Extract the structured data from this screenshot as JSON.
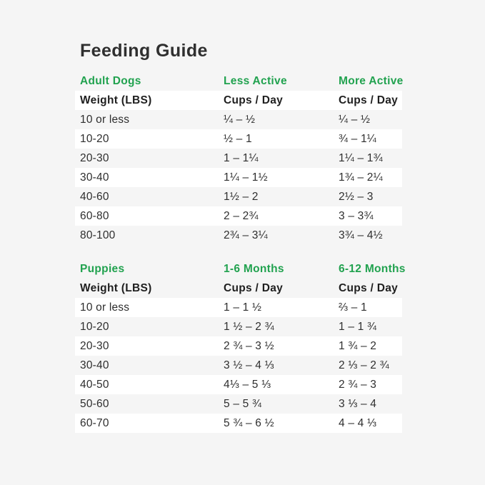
{
  "page": {
    "title": "Feeding Guide"
  },
  "colors": {
    "accent_green": "#21a24f",
    "page_background": "#f5f5f5",
    "row_highlight": "#ffffff",
    "text_dark": "#2e2e2e"
  },
  "tables": [
    {
      "name": "adult-dogs",
      "section_headers": [
        "Adult Dogs",
        "Less Active",
        "More Active"
      ],
      "column_headers": [
        "Weight (LBS)",
        "Cups / Day",
        "Cups / Day"
      ],
      "rows": [
        [
          "10 or less",
          "¼ – ½",
          "¼ – ½"
        ],
        [
          "10-20",
          "½ – 1",
          "¾ – 1¼"
        ],
        [
          "20-30",
          "1 – 1¼",
          "1¼ – 1¾"
        ],
        [
          "30-40",
          "1¼ – 1½",
          "1¾ – 2¼"
        ],
        [
          "40-60",
          "1½ – 2",
          "2½ – 3"
        ],
        [
          "60-80",
          "2 – 2¾",
          "3 – 3¾"
        ],
        [
          "80-100",
          "2¾ – 3¼",
          "3¾ – 4½"
        ]
      ]
    },
    {
      "name": "puppies",
      "section_headers": [
        "Puppies",
        "1-6 Months",
        "6-12 Months"
      ],
      "column_headers": [
        "Weight (LBS)",
        "Cups / Day",
        "Cups / Day"
      ],
      "rows": [
        [
          "10 or less",
          "1 – 1 ½",
          "⅔ – 1"
        ],
        [
          "10-20",
          "1 ½ – 2 ¾",
          "1 – 1 ¾"
        ],
        [
          "20-30",
          "2 ¾ – 3 ½",
          "1 ¾ – 2"
        ],
        [
          "30-40",
          "3 ½ – 4 ⅓",
          "2 ⅓ – 2 ¾"
        ],
        [
          "40-50",
          "4⅓ – 5 ⅓",
          "2 ¾ – 3"
        ],
        [
          "50-60",
          "5 – 5 ¾",
          "3 ⅓ – 4"
        ],
        [
          "60-70",
          "5 ¾ – 6 ½",
          "4 – 4 ⅓"
        ]
      ]
    }
  ]
}
